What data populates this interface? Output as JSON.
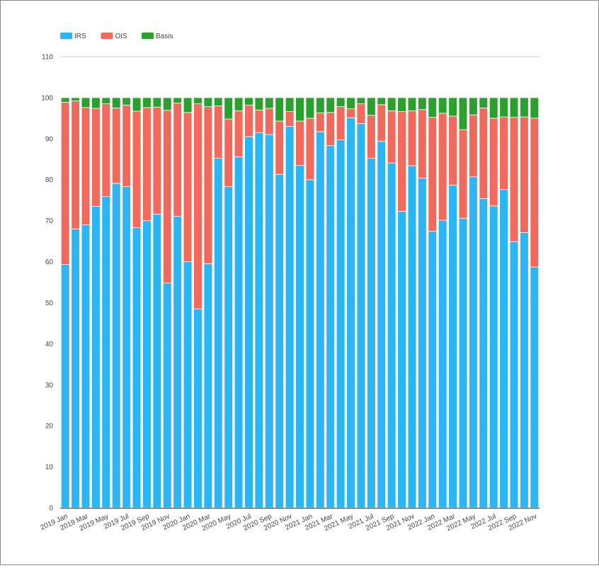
{
  "chart_data": {
    "type": "bar",
    "stacked": true,
    "title": "",
    "xlabel": "",
    "ylabel": "",
    "ylim": [
      0,
      110
    ],
    "yticks": [
      0,
      10,
      20,
      30,
      40,
      50,
      60,
      70,
      80,
      90,
      100,
      110
    ],
    "grid": true,
    "legend_position": "top-left",
    "categories": [
      "2019 Jan",
      "2019 Feb",
      "2019 Mar",
      "2019 Apr",
      "2019 May",
      "2019 Jun",
      "2019 Jul",
      "2019 Aug",
      "2019 Sep",
      "2019 Oct",
      "2019 Nov",
      "2019 Dec",
      "2020 Jan",
      "2020 Feb",
      "2020 Mar",
      "2020 Apr",
      "2020 May",
      "2020 Jun",
      "2020 Jul",
      "2020 Aug",
      "2020 Sep",
      "2020 Oct",
      "2020 Nov",
      "2020 Dec",
      "2021 Jan",
      "2021 Feb",
      "2021 Mar",
      "2021 Apr",
      "2021 May",
      "2021 Jun",
      "2021 Jul",
      "2021 Aug",
      "2021 Sep",
      "2021 Oct",
      "2021 Nov",
      "2021 Dec",
      "2022 Jan",
      "2022 Feb",
      "2022 Mar",
      "2022 Apr",
      "2022 May",
      "2022 Jun",
      "2022 Jul",
      "2022 Aug",
      "2022 Sep",
      "2022 Oct",
      "2022 Nov"
    ],
    "x_tick_labels": [
      "2019 Jan",
      "2019 Mar",
      "2019 May",
      "2019 Jul",
      "2019 Sep",
      "2019 Nov",
      "2020 Jan",
      "2020 Mar",
      "2020 May",
      "2020 Jul",
      "2020 Sep",
      "2020 Nov",
      "2021 Jan",
      "2021 Mar",
      "2021 May",
      "2021 Jul",
      "2021 Sep",
      "2021 Nov",
      "2022 Jan",
      "2022 Mar",
      "2022 May",
      "2022 Jul",
      "2022 Sep",
      "2022 Nov"
    ],
    "series": [
      {
        "name": "IRS",
        "color": "#2bb5f2",
        "values": [
          59.3,
          68.0,
          69.0,
          73.5,
          75.9,
          79.1,
          78.3,
          68.3,
          70.0,
          71.6,
          54.8,
          71.1,
          60.0,
          48.5,
          59.5,
          85.2,
          78.3,
          85.6,
          90.5,
          91.5,
          91.0,
          81.3,
          93.0,
          83.5,
          80.0,
          91.7,
          88.3,
          89.7,
          95.1,
          93.7,
          85.2,
          89.4,
          84.1,
          72.3,
          83.4,
          80.4,
          67.4,
          70.1,
          78.7,
          70.6,
          80.7,
          75.4,
          73.6,
          77.6,
          64.9,
          67.1,
          58.7
        ]
      },
      {
        "name": "OIS",
        "color": "#f06b5d",
        "values": [
          39.6,
          31.2,
          28.6,
          23.9,
          22.6,
          18.4,
          19.9,
          28.4,
          27.6,
          26.1,
          42.1,
          27.6,
          36.4,
          50.0,
          38.3,
          12.8,
          16.5,
          11.2,
          7.7,
          5.5,
          6.4,
          13.0,
          3.6,
          10.8,
          15.0,
          4.6,
          8.1,
          8.1,
          2.2,
          4.8,
          10.5,
          8.9,
          12.7,
          24.3,
          13.4,
          16.7,
          27.8,
          26.1,
          16.8,
          21.6,
          15.1,
          22.1,
          21.4,
          17.7,
          30.3,
          28.2,
          36.3
        ]
      },
      {
        "name": "Basis",
        "color": "#2ca02c",
        "values": [
          1.1,
          0.8,
          2.4,
          2.6,
          1.5,
          2.5,
          1.8,
          3.3,
          2.4,
          2.3,
          3.1,
          1.3,
          3.6,
          1.5,
          2.2,
          2.0,
          5.2,
          3.2,
          1.8,
          3.0,
          2.6,
          5.7,
          3.4,
          5.7,
          5.0,
          3.7,
          3.6,
          2.2,
          2.7,
          1.5,
          4.3,
          1.7,
          3.2,
          3.4,
          3.2,
          2.9,
          4.8,
          3.8,
          4.5,
          7.8,
          4.2,
          2.5,
          5.0,
          4.7,
          4.8,
          4.7,
          5.0
        ]
      }
    ]
  }
}
